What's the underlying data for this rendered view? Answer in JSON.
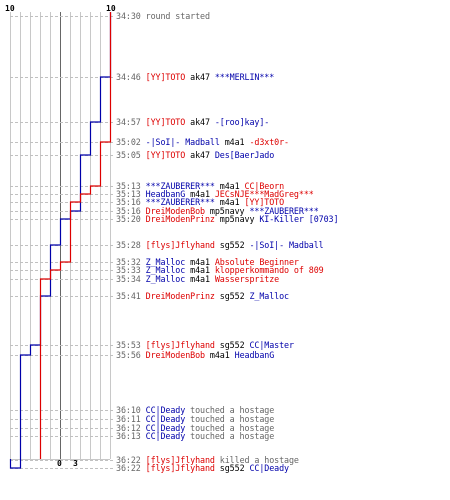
{
  "colors": {
    "team_blue": "#0000aa",
    "team_red": "#dd0000",
    "time": "#666666",
    "weapon": "#000000",
    "message": "#666666",
    "grid": "#c8c8c8",
    "dash": "#c0c0c0"
  },
  "scale": {
    "blue_top": "10",
    "red_top": "10",
    "blue_bottom": "0",
    "red_bottom": "3"
  },
  "events": [
    {
      "time": "34:30",
      "parts": [
        {
          "text": "round started",
          "cls": "m"
        }
      ]
    },
    {
      "time": "34:46",
      "parts": [
        {
          "text": "[YY]TOTO",
          "cls": "red"
        },
        {
          "text": "ak47",
          "cls": "w"
        },
        {
          "text": "***MERLIN***",
          "cls": "blue"
        }
      ]
    },
    {
      "time": "34:57",
      "parts": [
        {
          "text": "[YY]TOTO",
          "cls": "red"
        },
        {
          "text": "ak47",
          "cls": "w"
        },
        {
          "text": "-[roo]kay]-",
          "cls": "blue"
        }
      ]
    },
    {
      "time": "35:02",
      "parts": [
        {
          "text": "-|SoI|- Madball",
          "cls": "blue"
        },
        {
          "text": "m4a1",
          "cls": "w"
        },
        {
          "text": "-d3xt0r-",
          "cls": "red"
        }
      ]
    },
    {
      "time": "35:05",
      "parts": [
        {
          "text": "[YY]TOTO",
          "cls": "red"
        },
        {
          "text": "ak47",
          "cls": "w"
        },
        {
          "text": "Des[BaerJado",
          "cls": "blue"
        }
      ]
    },
    {
      "time": "35:13",
      "parts": [
        {
          "text": "***ZAUBERER***",
          "cls": "blue"
        },
        {
          "text": "m4a1",
          "cls": "w"
        },
        {
          "text": "CC|Beorn",
          "cls": "red"
        }
      ]
    },
    {
      "time": "35:13",
      "parts": [
        {
          "text": "HeadbanG",
          "cls": "blue"
        },
        {
          "text": "m4a1",
          "cls": "w"
        },
        {
          "text": "JECsNJE***MadGreg***",
          "cls": "red"
        }
      ]
    },
    {
      "time": "35:16",
      "parts": [
        {
          "text": "***ZAUBERER***",
          "cls": "blue"
        },
        {
          "text": "m4a1",
          "cls": "w"
        },
        {
          "text": "[YY]TOTO",
          "cls": "red"
        }
      ]
    },
    {
      "time": "35:16",
      "parts": [
        {
          "text": "DreiModenBob",
          "cls": "red"
        },
        {
          "text": "mp5navy",
          "cls": "w"
        },
        {
          "text": "***ZAUBERER***",
          "cls": "blue"
        }
      ]
    },
    {
      "time": "35:20",
      "parts": [
        {
          "text": "DreiModenPrinz",
          "cls": "red"
        },
        {
          "text": "mp5navy",
          "cls": "w"
        },
        {
          "text": "KI-Killer [0703]",
          "cls": "blue"
        }
      ]
    },
    {
      "time": "35:28",
      "parts": [
        {
          "text": "[flys]Jflyhand",
          "cls": "red"
        },
        {
          "text": "sg552",
          "cls": "w"
        },
        {
          "text": "-|SoI|- Madball",
          "cls": "blue"
        }
      ]
    },
    {
      "time": "35:32",
      "parts": [
        {
          "text": "Z_Malloc",
          "cls": "blue"
        },
        {
          "text": "m4a1",
          "cls": "w"
        },
        {
          "text": "Absolute Beginner",
          "cls": "red"
        }
      ]
    },
    {
      "time": "35:33",
      "parts": [
        {
          "text": "Z_Malloc",
          "cls": "blue"
        },
        {
          "text": "m4a1",
          "cls": "w"
        },
        {
          "text": "klopperkommando of 809",
          "cls": "red"
        }
      ]
    },
    {
      "time": "35:34",
      "parts": [
        {
          "text": "Z_Malloc",
          "cls": "blue"
        },
        {
          "text": "m4a1",
          "cls": "w"
        },
        {
          "text": "Wasserspritze",
          "cls": "red"
        }
      ]
    },
    {
      "time": "35:41",
      "parts": [
        {
          "text": "DreiModenPrinz",
          "cls": "red"
        },
        {
          "text": "sg552",
          "cls": "w"
        },
        {
          "text": "Z_Malloc",
          "cls": "blue"
        }
      ]
    },
    {
      "time": "35:53",
      "parts": [
        {
          "text": "[flys]Jflyhand",
          "cls": "red"
        },
        {
          "text": "sg552",
          "cls": "w"
        },
        {
          "text": "CC|Master",
          "cls": "blue"
        }
      ]
    },
    {
      "time": "35:56",
      "parts": [
        {
          "text": "DreiModenBob",
          "cls": "red"
        },
        {
          "text": "m4a1",
          "cls": "w"
        },
        {
          "text": "HeadbanG",
          "cls": "blue"
        }
      ]
    },
    {
      "time": "36:10",
      "parts": [
        {
          "text": "CC|Deady",
          "cls": "blue"
        },
        {
          "text": "touched a hostage",
          "cls": "m"
        }
      ]
    },
    {
      "time": "36:11",
      "parts": [
        {
          "text": "CC|Deady",
          "cls": "blue"
        },
        {
          "text": "touched a hostage",
          "cls": "m"
        }
      ]
    },
    {
      "time": "36:12",
      "parts": [
        {
          "text": "CC|Deady",
          "cls": "blue"
        },
        {
          "text": "touched a hostage",
          "cls": "m"
        }
      ]
    },
    {
      "time": "36:13",
      "parts": [
        {
          "text": "CC|Deady",
          "cls": "blue"
        },
        {
          "text": "touched a hostage",
          "cls": "m"
        }
      ]
    },
    {
      "time": "36:22",
      "parts": [
        {
          "text": "[flys]Jflyhand",
          "cls": "red"
        },
        {
          "text": "killed a hostage",
          "cls": "m"
        }
      ]
    },
    {
      "time": "36:22",
      "parts": [
        {
          "text": "[flys]Jflyhand",
          "cls": "red"
        },
        {
          "text": "sg552",
          "cls": "w"
        },
        {
          "text": "CC|Deady",
          "cls": "blue"
        }
      ]
    }
  ],
  "chart_data": {
    "type": "line",
    "x": [
      "34:30",
      "34:46",
      "34:57",
      "35:02",
      "35:05",
      "35:13",
      "35:13",
      "35:16",
      "35:16",
      "35:20",
      "35:28",
      "35:32",
      "35:33",
      "35:34",
      "35:41",
      "35:53",
      "35:56",
      "36:10",
      "36:11",
      "36:12",
      "36:13",
      "36:22",
      "36:22"
    ],
    "ylim": [
      0,
      10
    ],
    "series": [
      {
        "color": "#0000aa",
        "values": [
          10,
          9,
          8,
          8,
          7,
          7,
          7,
          7,
          6,
          5,
          4,
          4,
          4,
          4,
          3,
          2,
          1,
          1,
          1,
          1,
          1,
          1,
          0
        ]
      },
      {
        "color": "#dd0000",
        "values": [
          10,
          10,
          10,
          9,
          9,
          8,
          7,
          6,
          6,
          6,
          6,
          5,
          4,
          3,
          3,
          3,
          3,
          3,
          3,
          3,
          3,
          3,
          3
        ]
      }
    ]
  }
}
